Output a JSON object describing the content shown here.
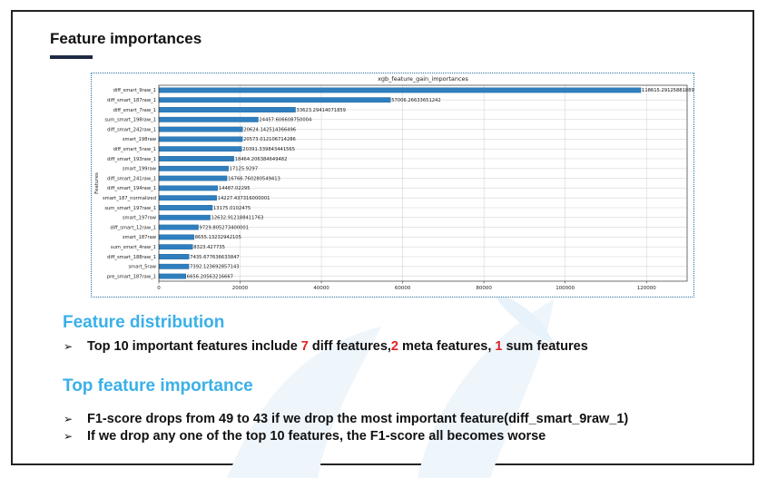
{
  "slide": {
    "title": "Feature importances",
    "section1": {
      "heading": "Feature distribution",
      "bullet": {
        "prefix": "Top 10 important features include ",
        "n_diff": "7",
        "diff_text": " diff features,",
        "n_meta": "2",
        "meta_text": " meta features, ",
        "n_sum": "1",
        "sum_text": " sum features"
      }
    },
    "section2": {
      "heading": "Top feature importance",
      "bullets": [
        "F1-score drops from 49 to 43 if we drop the most important feature(diff_smart_9raw_1)",
        "If we drop any one of the top 10 features, the F1-score all becomes worse"
      ]
    },
    "bullet_symbol": "➢"
  },
  "chart_data": {
    "type": "bar",
    "orientation": "horizontal",
    "title": "xgb_feature_gain_importances",
    "ylabel": "Features",
    "xlabel": "",
    "xlim": [
      0,
      130000
    ],
    "xticks": [
      0,
      20000,
      40000,
      60000,
      80000,
      100000,
      120000
    ],
    "grid": true,
    "bar_color": "#2f7fbf",
    "categories": [
      "diff_smart_9raw_1",
      "diff_smart_187raw_1",
      "diff_smart_7raw_1",
      "sum_smart_198raw_1",
      "diff_smart_242raw_1",
      "smart_198raw",
      "diff_smart_5raw_1",
      "diff_smart_193raw_1",
      "smart_199raw",
      "diff_smart_241raw_1",
      "diff_smart_194raw_1",
      "smart_187_normalized",
      "sum_smart_197raw_1",
      "smart_197raw",
      "diff_smart_12raw_1",
      "smart_187raw",
      "sum_smart_4raw_1",
      "diff_smart_188raw_1",
      "smart_5raw",
      "pre_smart_187raw_1"
    ],
    "values": [
      118615.29125881889,
      57006.26633651242,
      33623.29414071859,
      24457.606608750004,
      20624.142514366496,
      20573.012106714286,
      20391.339843441565,
      18464.206384649482,
      17125.9297,
      16766.760280549413,
      14487.02295,
      14227.437316000001,
      13175.0102475,
      12632.912188411763,
      9729.805273400001,
      8655.13232942105,
      8323.427735,
      7435.677636633847,
      7392.123692857143,
      6656.20563216667
    ],
    "value_labels": [
      "118615.29125881889",
      "57006.26633651242",
      "33623.29414071859",
      "24457.606608750004",
      "20624.142514366496",
      "20573.012106714286",
      "20391.339843441565",
      "18464.206384649482",
      "17125.9297",
      "16766.760280549413",
      "14487.02295",
      "14227.437316000001",
      "13175.0102475",
      "12632.912188411763",
      "9729.805273400001",
      "8655.13232942105",
      "8323.427735",
      "7435.677636633847",
      "7392.123692857143",
      "6656.20563216667"
    ]
  }
}
